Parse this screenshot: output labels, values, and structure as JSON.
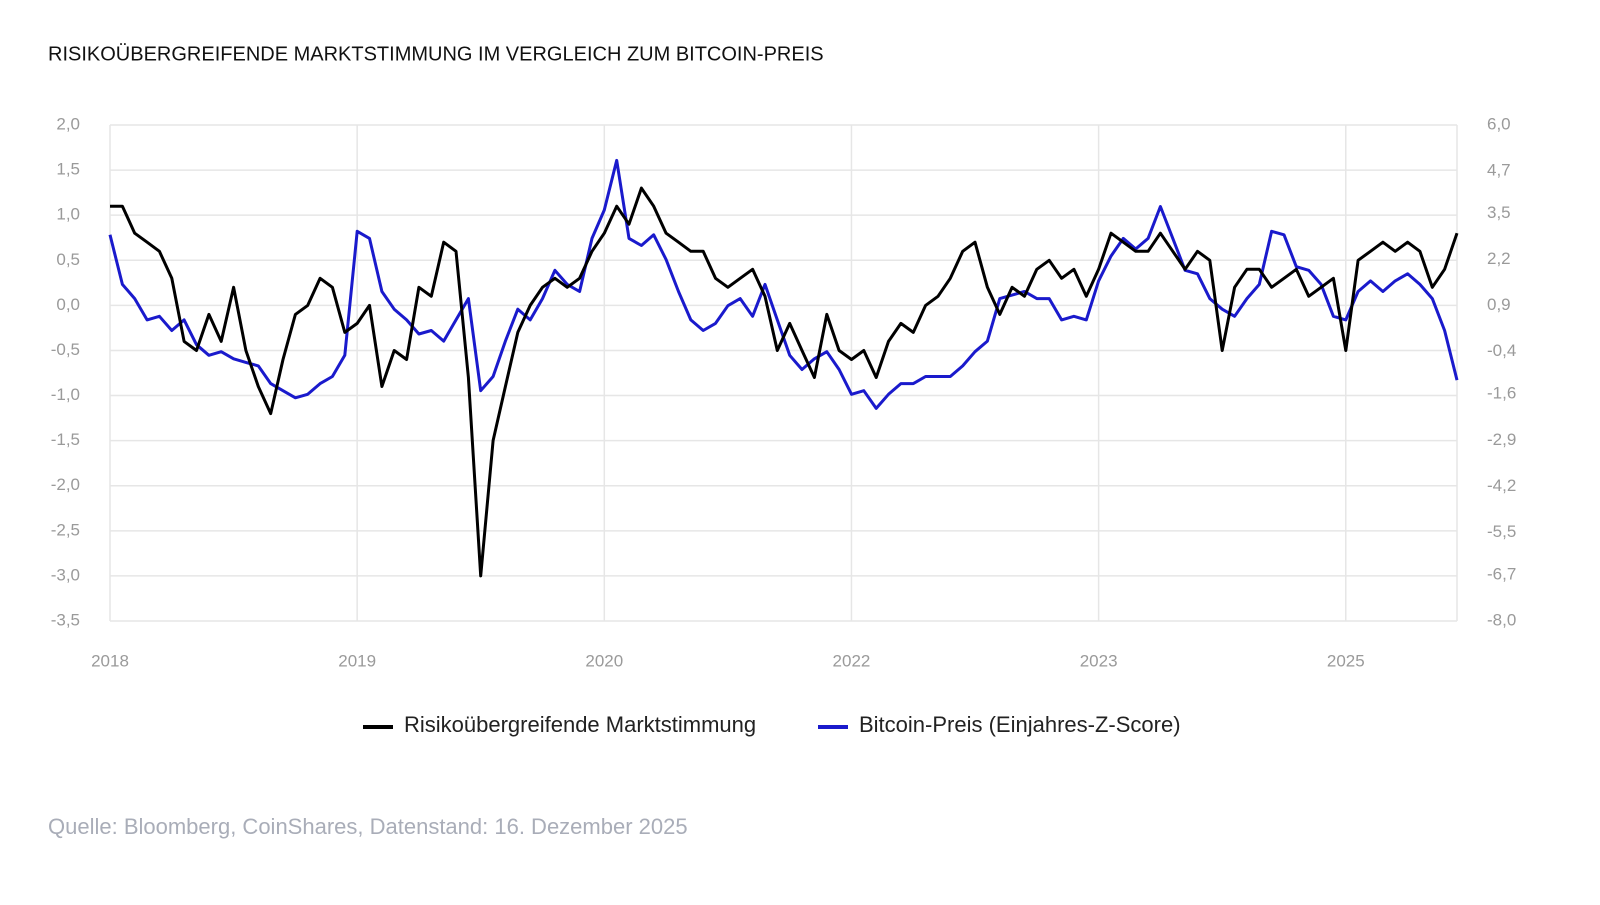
{
  "chart_data": {
    "type": "line",
    "title": "RISIKOÜBERGREIFENDE MARKTSTIMMUNG IM VERGLEICH ZUM BITCOIN-PREIS",
    "source": "Quelle: Bloomberg, CoinShares, Datenstand: 16. Dezember 2025",
    "categories": [
      "2018",
      null,
      null,
      null,
      null,
      null,
      null,
      null,
      null,
      null,
      null,
      null,
      null,
      null,
      null,
      null,
      null,
      null,
      null,
      null,
      "2019",
      null,
      null,
      null,
      null,
      null,
      null,
      null,
      null,
      null,
      null,
      null,
      null,
      null,
      null,
      null,
      null,
      null,
      null,
      null,
      "2020",
      null,
      null,
      null,
      null,
      null,
      null,
      null,
      null,
      null,
      null,
      null,
      null,
      null,
      null,
      null,
      null,
      null,
      null,
      null,
      "2022",
      null,
      null,
      null,
      null,
      null,
      null,
      null,
      null,
      null,
      null,
      null,
      null,
      null,
      null,
      null,
      null,
      null,
      null,
      null,
      "2023",
      null,
      null,
      null,
      null,
      null,
      null,
      null,
      null,
      null,
      null,
      null,
      null,
      null,
      null,
      null,
      null,
      null,
      null,
      null,
      "2025",
      null,
      null,
      null,
      null,
      null,
      null,
      null,
      null,
      null
    ],
    "series": [
      {
        "name": "Risikoübergreifende Marktstimmung",
        "color": "#000000",
        "values": [
          1.1,
          1.1,
          0.8,
          0.7,
          0.6,
          0.3,
          -0.4,
          -0.5,
          -0.1,
          -0.4,
          0.2,
          -0.5,
          -0.9,
          -1.2,
          -0.6,
          -0.1,
          0.0,
          0.3,
          0.2,
          -0.3,
          -0.2,
          0.0,
          -0.9,
          -0.5,
          -0.6,
          0.2,
          0.1,
          0.7,
          0.6,
          -0.8,
          -3.0,
          -1.5,
          -0.9,
          -0.3,
          0.0,
          0.2,
          0.3,
          0.2,
          0.3,
          0.6,
          0.8,
          1.1,
          0.9,
          1.3,
          1.1,
          0.8,
          0.7,
          0.6,
          0.6,
          0.3,
          0.2,
          0.3,
          0.4,
          0.1,
          -0.5,
          -0.2,
          -0.5,
          -0.8,
          -0.1,
          -0.5,
          -0.6,
          -0.5,
          -0.8,
          -0.4,
          -0.2,
          -0.3,
          0.0,
          0.1,
          0.3,
          0.6,
          0.7,
          0.2,
          -0.1,
          0.2,
          0.1,
          0.4,
          0.5,
          0.3,
          0.4,
          0.1,
          0.4,
          0.8,
          0.7,
          0.6,
          0.6,
          0.8,
          0.6,
          0.4,
          0.6,
          0.5,
          -0.5,
          0.2,
          0.4,
          0.4,
          0.2,
          0.3,
          0.4,
          0.1,
          0.2,
          0.3,
          -0.5,
          0.5,
          0.6,
          0.7,
          0.6,
          0.7,
          0.6,
          0.2,
          0.4,
          0.8
        ]
      },
      {
        "name": "Bitcoin-Preis (Einjahres-Z-Score)",
        "color": "#1a1acc",
        "axis": "y2",
        "values": [
          2.9,
          1.5,
          1.1,
          0.5,
          0.6,
          0.2,
          0.5,
          -0.2,
          -0.5,
          -0.4,
          -0.6,
          -0.7,
          -0.8,
          -1.3,
          -1.5,
          -1.7,
          -1.6,
          -1.3,
          -1.1,
          -0.5,
          3.0,
          2.8,
          1.3,
          0.8,
          0.5,
          0.1,
          0.2,
          -0.1,
          0.5,
          1.1,
          -1.5,
          -1.1,
          -0.1,
          0.8,
          0.5,
          1.1,
          1.9,
          1.5,
          1.3,
          2.8,
          3.6,
          5.0,
          2.8,
          2.6,
          2.9,
          2.2,
          1.3,
          0.5,
          0.2,
          0.4,
          0.9,
          1.1,
          0.6,
          1.5,
          0.5,
          -0.5,
          -0.9,
          -0.6,
          -0.4,
          -0.9,
          -1.6,
          -1.5,
          -2.0,
          -1.6,
          -1.3,
          -1.3,
          -1.1,
          -1.1,
          -1.1,
          -0.8,
          -0.4,
          -0.1,
          1.1,
          1.2,
          1.3,
          1.1,
          1.1,
          0.5,
          0.6,
          0.5,
          1.6,
          2.3,
          2.8,
          2.5,
          2.8,
          3.7,
          2.8,
          1.9,
          1.8,
          1.1,
          0.8,
          0.6,
          1.1,
          1.5,
          3.0,
          2.9,
          2.0,
          1.9,
          1.5,
          0.6,
          0.5,
          1.3,
          1.6,
          1.3,
          1.6,
          1.8,
          1.5,
          1.1,
          0.2,
          -1.2
        ]
      }
    ],
    "ylim": [
      -3.5,
      2.0
    ],
    "yticks": [
      {
        "value": -3.5,
        "label": "-3,5"
      },
      {
        "value": -3,
        "label": "-3,0"
      },
      {
        "value": -2.5,
        "label": "-2,5"
      },
      {
        "value": -2,
        "label": "-2,0"
      },
      {
        "value": -1.5,
        "label": "-1,5"
      },
      {
        "value": -1,
        "label": "-1,0"
      },
      {
        "value": -0.5,
        "label": "-0,5"
      },
      {
        "value": 0,
        "label": "0,0"
      },
      {
        "value": 0.5,
        "label": "0,5"
      },
      {
        "value": 1,
        "label": "1,0"
      },
      {
        "value": 1.5,
        "label": "1,5"
      },
      {
        "value": 2,
        "label": "2,0"
      }
    ],
    "y2lim": [
      -8.0,
      6.0
    ],
    "y2ticks": [
      {
        "value": -8,
        "label": "-8,0"
      },
      {
        "value": -6.7,
        "label": "-6,7"
      },
      {
        "value": -5.5,
        "label": "-5,5"
      },
      {
        "value": -4.2,
        "label": "-4,2"
      },
      {
        "value": -2.9,
        "label": "-2,9"
      },
      {
        "value": -1.6,
        "label": "-1,6"
      },
      {
        "value": -0.4,
        "label": "-0,4"
      },
      {
        "value": 0.9,
        "label": "0,9"
      },
      {
        "value": 2.2,
        "label": "2,2"
      },
      {
        "value": 3.5,
        "label": "3,5"
      },
      {
        "value": 4.7,
        "label": "4,7"
      },
      {
        "value": 6,
        "label": "6,0"
      }
    ],
    "grid": true,
    "legend": "bottom"
  }
}
